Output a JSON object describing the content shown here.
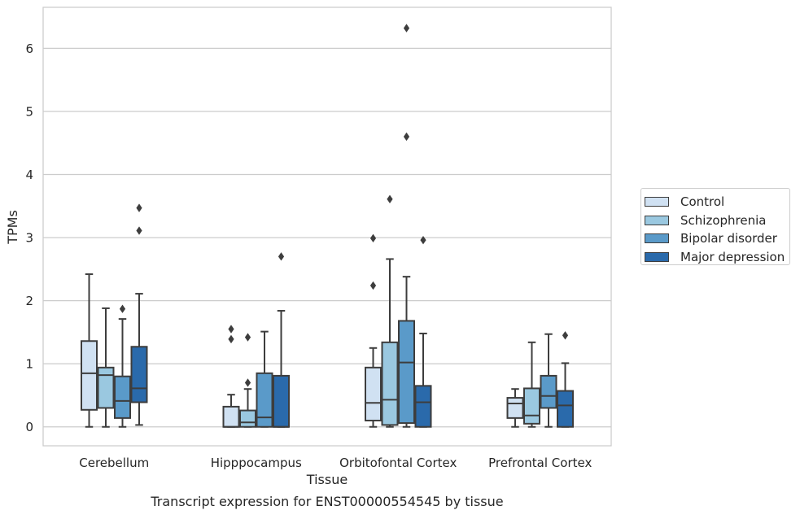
{
  "chart_data": {
    "type": "box",
    "title": "Transcript expression for ENST00000554545 by tissue",
    "xlabel": "Tissue",
    "ylabel": "TPMs",
    "ylim": [
      -0.3,
      6.65
    ],
    "yticks": [
      0,
      1,
      2,
      3,
      4,
      5,
      6
    ],
    "grid": true,
    "legend_placement": "center-right",
    "categories": [
      "Cerebellum",
      "Hipppocampus",
      "Orbitofontal Cortex",
      "Prefrontal Cortex"
    ],
    "series": [
      {
        "name": "Control",
        "color": "#d0e1f2",
        "boxes": [
          {
            "whislo": 0.0,
            "q1": 0.27,
            "med": 0.85,
            "q3": 1.36,
            "whishi": 2.42,
            "fliers": []
          },
          {
            "whislo": 0.0,
            "q1": 0.0,
            "med": 0.0,
            "q3": 0.32,
            "whishi": 0.51,
            "fliers": [
              1.39,
              1.55
            ]
          },
          {
            "whislo": 0.0,
            "q1": 0.1,
            "med": 0.38,
            "q3": 0.94,
            "whishi": 1.25,
            "fliers": [
              2.24,
              2.99
            ]
          },
          {
            "whislo": 0.0,
            "q1": 0.14,
            "med": 0.37,
            "q3": 0.46,
            "whishi": 0.6,
            "fliers": []
          }
        ]
      },
      {
        "name": "Schizophrenia",
        "color": "#9ac8e0",
        "boxes": [
          {
            "whislo": 0.0,
            "q1": 0.3,
            "med": 0.82,
            "q3": 0.94,
            "whishi": 1.88,
            "fliers": []
          },
          {
            "whislo": 0.0,
            "q1": 0.0,
            "med": 0.07,
            "q3": 0.26,
            "whishi": 0.6,
            "fliers": [
              0.7,
              1.42
            ]
          },
          {
            "whislo": 0.0,
            "q1": 0.03,
            "med": 0.43,
            "q3": 1.34,
            "whishi": 2.66,
            "fliers": [
              3.61
            ]
          },
          {
            "whislo": 0.0,
            "q1": 0.05,
            "med": 0.18,
            "q3": 0.61,
            "whishi": 1.34,
            "fliers": []
          }
        ]
      },
      {
        "name": "Bipolar disorder",
        "color": "#5a9ac9",
        "boxes": [
          {
            "whislo": 0.0,
            "q1": 0.14,
            "med": 0.41,
            "q3": 0.8,
            "whishi": 1.71,
            "fliers": [
              1.87
            ]
          },
          {
            "whislo": 0.0,
            "q1": 0.0,
            "med": 0.15,
            "q3": 0.85,
            "whishi": 1.51,
            "fliers": []
          },
          {
            "whislo": 0.0,
            "q1": 0.06,
            "med": 1.02,
            "q3": 1.68,
            "whishi": 2.38,
            "fliers": [
              4.6,
              6.32
            ]
          },
          {
            "whislo": 0.0,
            "q1": 0.3,
            "med": 0.49,
            "q3": 0.81,
            "whishi": 1.47,
            "fliers": []
          }
        ]
      },
      {
        "name": "Major depression",
        "color": "#2a6aab",
        "boxes": [
          {
            "whislo": 0.03,
            "q1": 0.39,
            "med": 0.61,
            "q3": 1.27,
            "whishi": 2.11,
            "fliers": [
              3.11,
              3.47
            ]
          },
          {
            "whislo": 0.0,
            "q1": 0.0,
            "med": 0.0,
            "q3": 0.81,
            "whishi": 1.84,
            "fliers": [
              2.7
            ]
          },
          {
            "whislo": 0.0,
            "q1": 0.0,
            "med": 0.39,
            "q3": 0.65,
            "whishi": 1.48,
            "fliers": [
              2.96
            ]
          },
          {
            "whislo": 0.0,
            "q1": 0.0,
            "med": 0.34,
            "q3": 0.57,
            "whishi": 1.01,
            "fliers": [
              1.45
            ]
          }
        ]
      }
    ]
  }
}
